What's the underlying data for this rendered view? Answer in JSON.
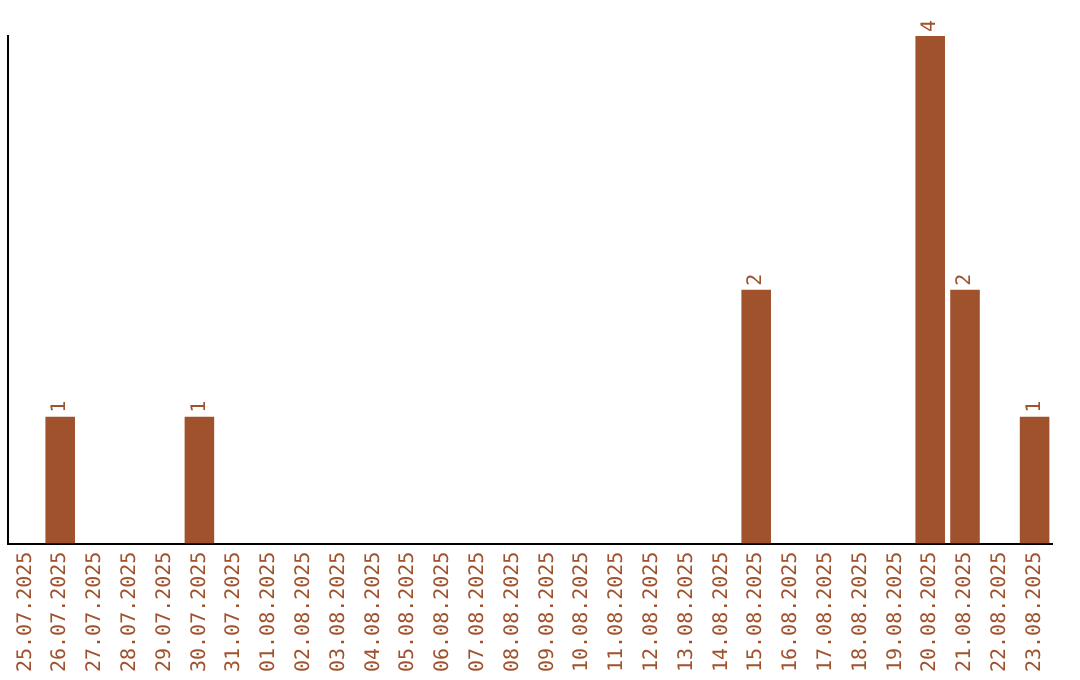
{
  "chart_data": {
    "type": "bar",
    "categories": [
      "25.07.2025",
      "26.07.2025",
      "27.07.2025",
      "28.07.2025",
      "29.07.2025",
      "30.07.2025",
      "31.07.2025",
      "01.08.2025",
      "02.08.2025",
      "03.08.2025",
      "04.08.2025",
      "05.08.2025",
      "06.08.2025",
      "07.08.2025",
      "08.08.2025",
      "09.08.2025",
      "10.08.2025",
      "11.08.2025",
      "12.08.2025",
      "13.08.2025",
      "14.08.2025",
      "15.08.2025",
      "16.08.2025",
      "17.08.2025",
      "18.08.2025",
      "19.08.2025",
      "20.08.2025",
      "21.08.2025",
      "22.08.2025",
      "23.08.2025"
    ],
    "values": [
      0,
      1,
      0,
      0,
      0,
      1,
      0,
      0,
      0,
      0,
      0,
      0,
      0,
      0,
      0,
      0,
      0,
      0,
      0,
      0,
      0,
      2,
      0,
      0,
      0,
      0,
      4,
      2,
      0,
      1
    ],
    "value_labels": [
      null,
      "1",
      null,
      null,
      null,
      "1",
      null,
      null,
      null,
      null,
      null,
      null,
      null,
      null,
      null,
      null,
      null,
      null,
      null,
      null,
      null,
      "2",
      null,
      null,
      null,
      null,
      "4",
      "2",
      null,
      "1"
    ],
    "color": "#a0522d",
    "grid": false,
    "legend": false,
    "tick_labels": "x"
  }
}
